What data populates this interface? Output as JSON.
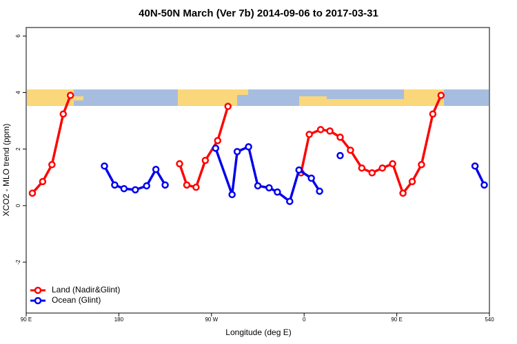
{
  "chart_data": {
    "type": "line",
    "title": "40N-50N March (Ver 7b)   2014-09-06 to 2017-03-31",
    "x_label": "Longitude (deg E)",
    "y_label": "XCO2 - MLO trend (ppm)",
    "xlim": [
      90,
      540
    ],
    "xticks": [
      {
        "value": 90,
        "label": "90 E"
      },
      180,
      {
        "value": 270,
        "label": "90 W"
      },
      {
        "value": 360,
        "label": "0"
      },
      {
        "value": 450,
        "label": "90 E"
      },
      540
    ],
    "ylim": [
      -3.8,
      6.3
    ],
    "yticks": [
      -2,
      0,
      2,
      4,
      6
    ],
    "grid": false,
    "legend": "bottom-left",
    "series": [
      {
        "name": "Land (Nadir&Glint)",
        "color": "#ff0000",
        "x": [
          96,
          106,
          115,
          126,
          133,
          null,
          239,
          246,
          255,
          264,
          276,
          286,
          null,
          357,
          365,
          376,
          385,
          395,
          405,
          416,
          426,
          436,
          446,
          456,
          465,
          474,
          485,
          493
        ],
        "values": [
          0.44,
          0.85,
          1.45,
          3.24,
          3.9,
          null,
          1.48,
          0.73,
          0.65,
          1.6,
          2.3,
          3.51,
          null,
          1.16,
          2.52,
          2.69,
          2.64,
          2.42,
          1.96,
          1.33,
          1.16,
          1.33,
          1.48,
          0.44,
          0.85,
          1.45,
          3.24,
          3.9
        ]
      },
      {
        "name": "Ocean (Glint)",
        "color": "#0000ee",
        "x": [
          166,
          176,
          185,
          196,
          207,
          216,
          225,
          null,
          274,
          290,
          295,
          306,
          315,
          326,
          334,
          346,
          355,
          367,
          375,
          null,
          395,
          null,
          526,
          535
        ],
        "values": [
          1.4,
          0.73,
          0.6,
          0.56,
          0.7,
          1.28,
          0.73,
          null,
          2.03,
          0.39,
          1.91,
          2.08,
          0.7,
          0.63,
          0.48,
          0.15,
          1.26,
          0.97,
          0.51,
          null,
          1.77,
          null,
          1.4,
          0.73
        ]
      }
    ]
  }
}
